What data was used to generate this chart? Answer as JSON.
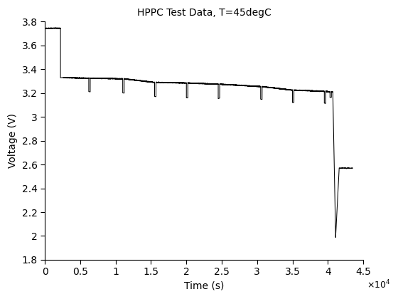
{
  "title": "HPPC Test Data, T=45degC",
  "xlabel": "Time (s)",
  "ylabel": "Voltage (V)",
  "xlim": [
    0,
    45000
  ],
  "ylim": [
    1.8,
    3.8
  ],
  "xticks": [
    0,
    5000,
    10000,
    15000,
    20000,
    25000,
    30000,
    35000,
    40000,
    45000
  ],
  "xticklabels": [
    "0",
    "0.5",
    "1",
    "1.5",
    "2",
    "2.5",
    "3",
    "3.5",
    "4",
    "4.5"
  ],
  "yticks": [
    1.8,
    2.0,
    2.2,
    2.4,
    2.6,
    2.8,
    3.0,
    3.2,
    3.4,
    3.6,
    3.8
  ],
  "yticklabels": [
    "1.8",
    "2",
    "2.2",
    "2.4",
    "2.6",
    "2.8",
    "3",
    "3.2",
    "3.4",
    "3.6",
    "3.8"
  ],
  "line_color": "#000000",
  "line_width": 0.75,
  "background_color": "#ffffff",
  "figsize": [
    5.6,
    4.2
  ],
  "dpi": 100,
  "title_fontsize": 10,
  "label_fontsize": 10,
  "tick_fontsize": 10
}
